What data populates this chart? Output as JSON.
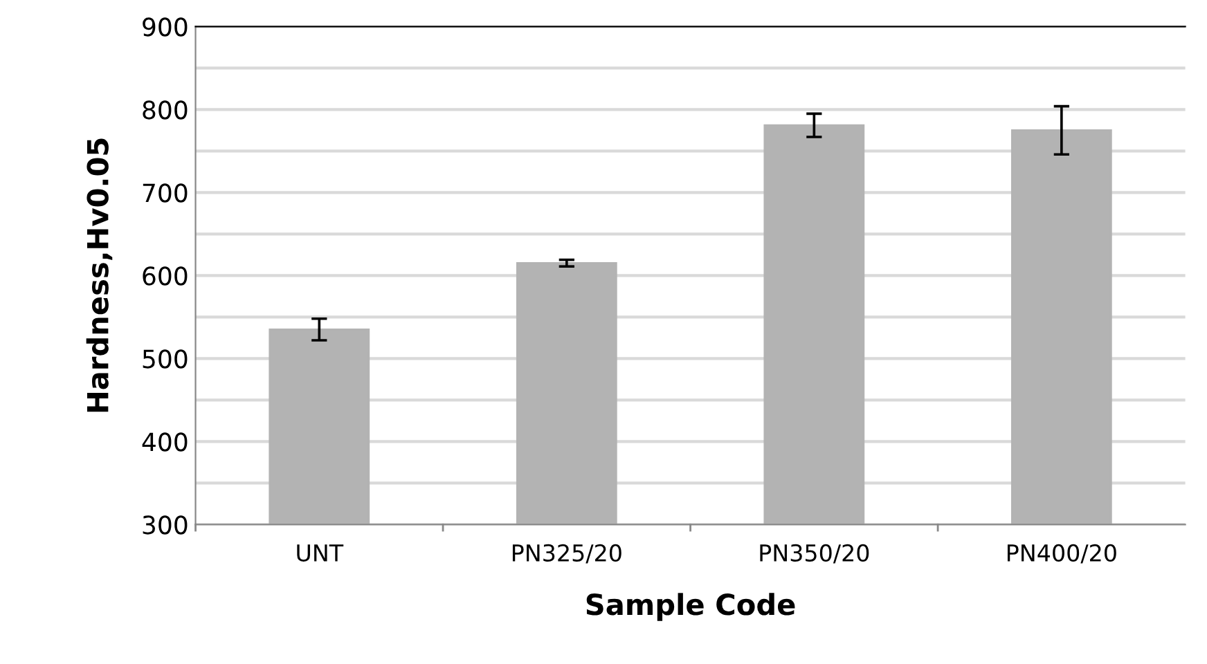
{
  "chart_data": {
    "type": "bar",
    "xlabel": "Sample Code",
    "ylabel": "Hardness,Hv0.05",
    "categories": [
      "UNT",
      "PN325/20",
      "PN350/20",
      "PN400/20"
    ],
    "values": [
      535,
      615,
      781,
      775
    ],
    "errors": [
      13,
      4,
      14,
      29
    ],
    "color": "#b3b3b3",
    "ylim": [
      300,
      900
    ],
    "yticks": [
      300,
      {
        "value": 350,
        "label": null
      },
      400,
      {
        "value": 450,
        "label": null
      },
      500,
      {
        "value": 550,
        "label": null
      },
      600,
      {
        "value": 650,
        "label": null
      },
      700,
      {
        "value": 750,
        "label": null
      },
      800,
      {
        "value": 850,
        "label": null
      },
      900
    ],
    "grid": "y"
  }
}
